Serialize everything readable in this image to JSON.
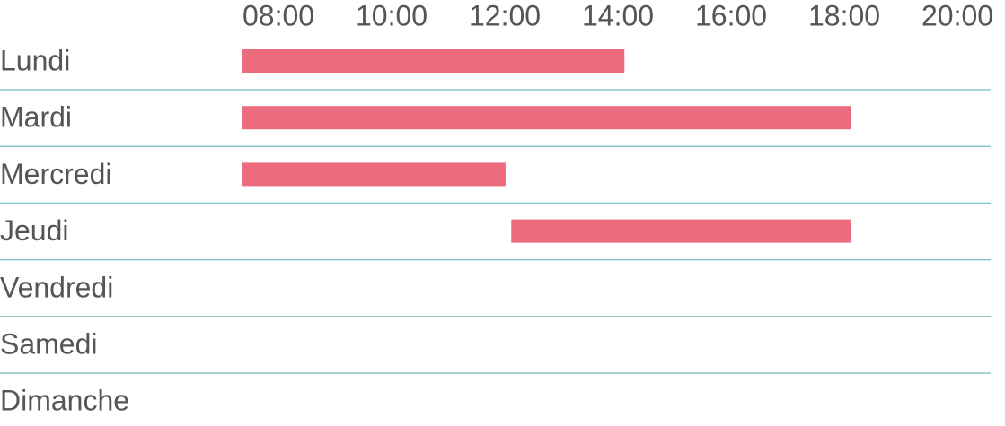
{
  "chart_data": {
    "type": "range-bar",
    "categories": [
      "Lundi",
      "Mardi",
      "Mercredi",
      "Jeudi",
      "Vendredi",
      "Samedi",
      "Dimanche"
    ],
    "starts": [
      8,
      8,
      8,
      12.75,
      null,
      null,
      null
    ],
    "ends": [
      14.75,
      18.75,
      12.65,
      18.75,
      null,
      null,
      null
    ],
    "color": "#ec6b7e",
    "xlim": [
      8,
      20
    ],
    "xticks": [
      {
        "value": 8,
        "label": "08:00"
      },
      {
        "value": 10,
        "label": "10:00"
      },
      {
        "value": 12,
        "label": "12:00"
      },
      {
        "value": 14,
        "label": "14:00"
      },
      {
        "value": 16,
        "label": "16:00"
      },
      {
        "value": 18,
        "label": "18:00"
      },
      {
        "value": 20,
        "label": "20:00"
      }
    ]
  }
}
